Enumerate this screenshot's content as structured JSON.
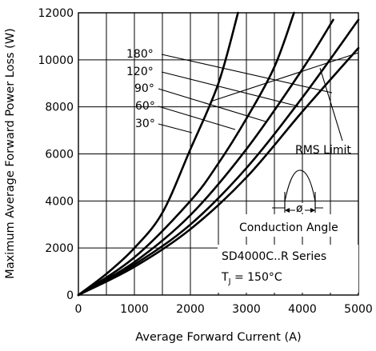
{
  "chart_data": {
    "type": "line",
    "title": "",
    "xlabel": "Average Forward Current (A)",
    "ylabel": "Maximum Average Forward Power Loss (W)",
    "xlim": [
      0,
      5000
    ],
    "ylim": [
      0,
      12000
    ],
    "grid": true,
    "x_ticks": [
      "0",
      "1000",
      "2000",
      "3000",
      "4000",
      "5000"
    ],
    "y_ticks": [
      "0",
      "2000",
      "4000",
      "6000",
      "8000",
      "10000",
      "12000"
    ],
    "series": [
      {
        "name": "30°",
        "points": [
          [
            0,
            0
          ],
          [
            500,
            900
          ],
          [
            1000,
            2000
          ],
          [
            1500,
            3500
          ],
          [
            2000,
            6200
          ],
          [
            2500,
            9000
          ],
          [
            2850,
            12000
          ]
        ]
      },
      {
        "name": "60°",
        "points": [
          [
            0,
            0
          ],
          [
            1000,
            1600
          ],
          [
            2000,
            4000
          ],
          [
            2500,
            5600
          ],
          [
            3000,
            7500
          ],
          [
            3500,
            9700
          ],
          [
            3850,
            12000
          ]
        ]
      },
      {
        "name": "90°",
        "points": [
          [
            0,
            0
          ],
          [
            1000,
            1400
          ],
          [
            2000,
            3400
          ],
          [
            3000,
            6200
          ],
          [
            4000,
            9600
          ],
          [
            4550,
            11700
          ]
        ]
      },
      {
        "name": "120°",
        "points": [
          [
            0,
            0
          ],
          [
            1000,
            1300
          ],
          [
            2000,
            3000
          ],
          [
            3000,
            5400
          ],
          [
            4000,
            8400
          ],
          [
            5000,
            11700
          ]
        ]
      },
      {
        "name": "180°",
        "points": [
          [
            0,
            0
          ],
          [
            1000,
            1200
          ],
          [
            2000,
            2800
          ],
          [
            3000,
            5000
          ],
          [
            4000,
            7800
          ],
          [
            5000,
            10500
          ]
        ]
      }
    ],
    "annotations": {
      "angle_labels": [
        "180°",
        "120°",
        "90°",
        "60°",
        "30°"
      ],
      "rms_limit": "RMS Limit",
      "conduction_angle": "Conduction Angle",
      "phi_symbol": "ø",
      "series_info": "SD4000C..R Series",
      "temperature_prefix": "T",
      "temperature_subscript": "J",
      "temperature_value": " = 150°C"
    }
  }
}
